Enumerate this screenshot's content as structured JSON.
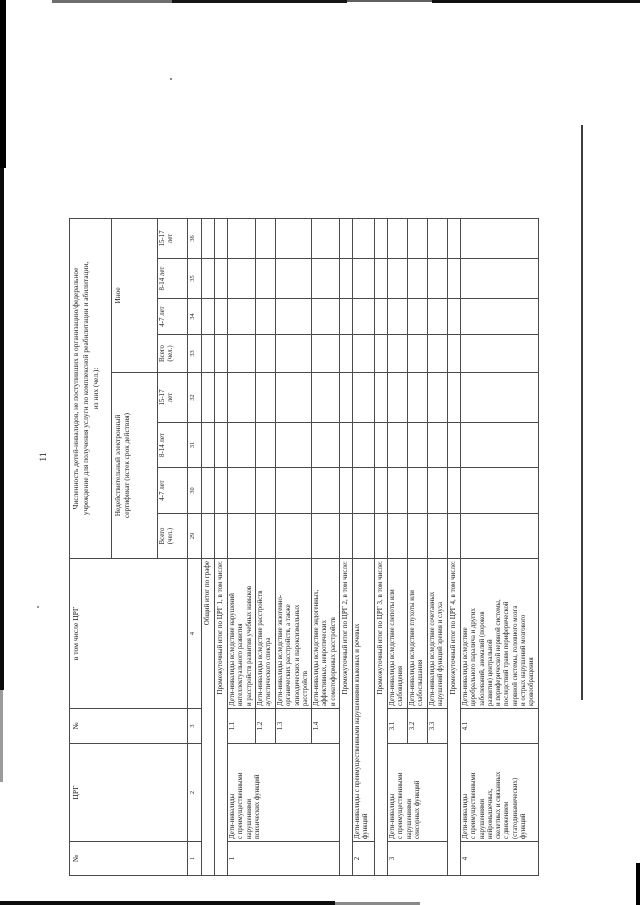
{
  "doc": {
    "page_number": "11",
    "table": {
      "corner": {
        "no1": "№",
        "crg": "ЦРГ",
        "no2": "№",
        "incl": "в том числе ЦРГ"
      },
      "top_header": "Численность детей-инвалидов, не поступивших в организацию/федеральное\nучреждение для получения услуги по комплексной реабилитации и абилитации,\nиз них (чел.):",
      "groups": {
        "invalid_cert": "Недействительный электронный\nсертификат (истек срок действия)",
        "other": "Иное"
      },
      "age_cols": {
        "total": "Всего\n(чел.)",
        "a47": "4-7 лет",
        "a814": "8-14 лет",
        "a1517": "15-17\nлет"
      },
      "col_numbers": [
        "1",
        "2",
        "3",
        "4",
        "29",
        "30",
        "31",
        "32",
        "33",
        "34",
        "35",
        "36"
      ],
      "section_rows": {
        "grand_total": "Общий итог по графе",
        "crg1": "Промежуточный итог по ЦРГ 1, в том числе:",
        "crg2": "Промежуточный итог по ЦРГ 2, в том числе:",
        "crg3": "Промежуточный итог по ЦРГ 3, в том числе:",
        "crg4": "Промежуточный итог по ЦРГ 4, в том числе:"
      },
      "rows": {
        "r1": {
          "no": "1",
          "crg": "Дети-инвалиды\nс преимущественными\nнарушениями\nпсихических функций"
        },
        "r11": {
          "no": "1.1",
          "text": "Дети-инвалиды вследствие нарушений\nинтеллектуального развития\nи расстройств развития учебных навыков"
        },
        "r12": {
          "no": "1.2",
          "text": "Дети-инвалиды вследствие расстройств\nаутистического спектра"
        },
        "r13": {
          "no": "1.3",
          "text": "Дети-инвалиды вследствие экзогенно-\nорганических расстройств, а также\nэпизодических и пароксизмальных\nрасстройств"
        },
        "r14": {
          "no": "1.4",
          "text": "Дети-инвалиды вследствие эндогенных,\nаффективных, невротических\nи соматоформных расстройств"
        },
        "r2": {
          "no": "2",
          "text": "Дети-инвалиды с преимущественными нарушениями языковых и речевых\nфункций"
        },
        "r3": {
          "no": "3",
          "crg": "Дети-инвалиды\nс преимущественными\nнарушениями\nсенсорных функций"
        },
        "r31": {
          "no": "3.1",
          "text": "Дети-инвалиды вследствие слепоты или\nслабовидения"
        },
        "r32": {
          "no": "3.2",
          "text": "Дети-инвалиды вследствие глухоты или\nслабослышания"
        },
        "r33": {
          "no": "3.3",
          "text": "Дети-инвалиды вследствие сочетанных\nнарушений функций зрения и слуха"
        },
        "r4": {
          "no": "4",
          "crg": "Дети-инвалиды\nс преимущественными\nнарушениями\nнейромышечных,\nскелетных и связанных\nс движением\n(статодинамических)\nфункций"
        },
        "r41": {
          "no": "4.1",
          "text": "Дети-инвалиды вследствие\nцеребрального паралича и других\nзаболеваний, аномалий (пороков\nразвития) центральной\nи периферической нервной системы,\nпоследствий травм периферической\nнервной системы, головного мозга\nи острых нарушений мозгового\nкровообращения"
        }
      }
    },
    "colors": {
      "paper": "#ffffff",
      "text": "#1c1c1c",
      "grid_border": "#4b4b4b",
      "scan_artifact": "#000000"
    }
  }
}
